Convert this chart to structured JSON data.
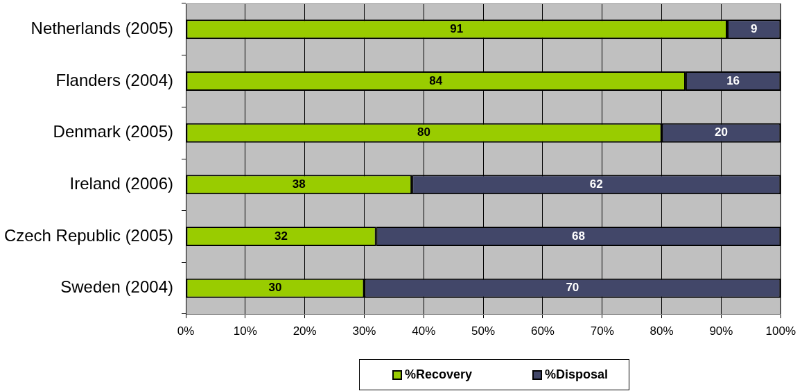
{
  "chart_data": {
    "type": "bar",
    "orientation": "horizontal",
    "stacked": true,
    "categories": [
      "Netherlands (2005)",
      "Flanders (2004)",
      "Denmark (2005)",
      "Ireland (2006)",
      "Czech Republic (2005)",
      "Sweden (2004)"
    ],
    "series": [
      {
        "name": "%Recovery",
        "color": "#99cc00",
        "values": [
          91,
          84,
          80,
          38,
          32,
          30
        ]
      },
      {
        "name": "%Disposal",
        "color": "#424769",
        "values": [
          9,
          16,
          20,
          62,
          68,
          70
        ]
      }
    ],
    "xlim": [
      0,
      100
    ],
    "xticks": [
      {
        "value": 0,
        "label": "0%"
      },
      {
        "value": 10,
        "label": "10%"
      },
      {
        "value": 20,
        "label": "20%"
      },
      {
        "value": 30,
        "label": "30%"
      },
      {
        "value": 40,
        "label": "40%"
      },
      {
        "value": 50,
        "label": "50%"
      },
      {
        "value": 60,
        "label": "60%"
      },
      {
        "value": 70,
        "label": "70%"
      },
      {
        "value": 80,
        "label": "80%"
      },
      {
        "value": 90,
        "label": "90%"
      },
      {
        "value": 100,
        "label": "100%"
      }
    ],
    "grid": "x",
    "legend": "bottom",
    "data_labels": true
  }
}
